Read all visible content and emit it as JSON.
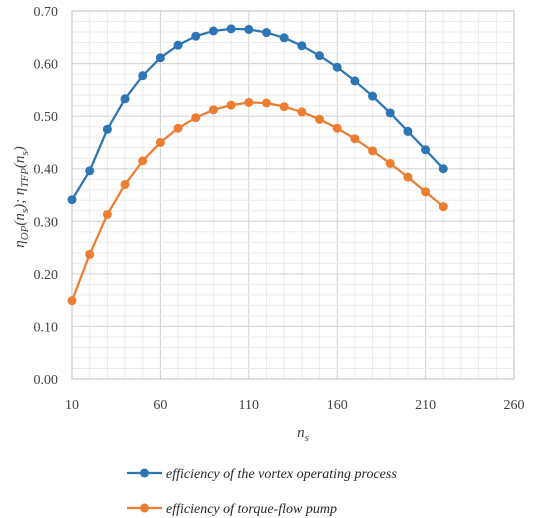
{
  "chart_data": {
    "type": "line",
    "title": "",
    "xlabel": "n_s",
    "ylabel": "η_OP(n_s); η_TFP(n_s)",
    "xlim": [
      10,
      260
    ],
    "ylim": [
      0,
      0.7
    ],
    "x_ticks": [
      "10",
      "60",
      "110",
      "160",
      "210",
      "260"
    ],
    "y_ticks": [
      "0.00",
      "0.10",
      "0.20",
      "0.30",
      "0.40",
      "0.50",
      "0.60",
      "0.70"
    ],
    "grid": true,
    "legend_position": "bottom",
    "x": [
      10,
      20,
      30,
      40,
      50,
      60,
      70,
      80,
      90,
      100,
      110,
      120,
      130,
      140,
      150,
      160,
      170,
      180,
      190,
      200,
      210,
      220
    ],
    "series": [
      {
        "name": "efficiency of the vortex operating process",
        "color": "#2e75b6",
        "values": [
          0.341,
          0.396,
          0.475,
          0.533,
          0.577,
          0.611,
          0.635,
          0.652,
          0.662,
          0.666,
          0.665,
          0.659,
          0.649,
          0.634,
          0.615,
          0.593,
          0.567,
          0.538,
          0.506,
          0.471,
          0.436,
          0.4
        ]
      },
      {
        "name": "efficiency of torque-flow pump",
        "color": "#ed7d31",
        "values": [
          0.149,
          0.237,
          0.313,
          0.37,
          0.415,
          0.45,
          0.477,
          0.497,
          0.512,
          0.521,
          0.526,
          0.525,
          0.518,
          0.508,
          0.494,
          0.477,
          0.457,
          0.434,
          0.41,
          0.384,
          0.356,
          0.328
        ]
      }
    ]
  }
}
